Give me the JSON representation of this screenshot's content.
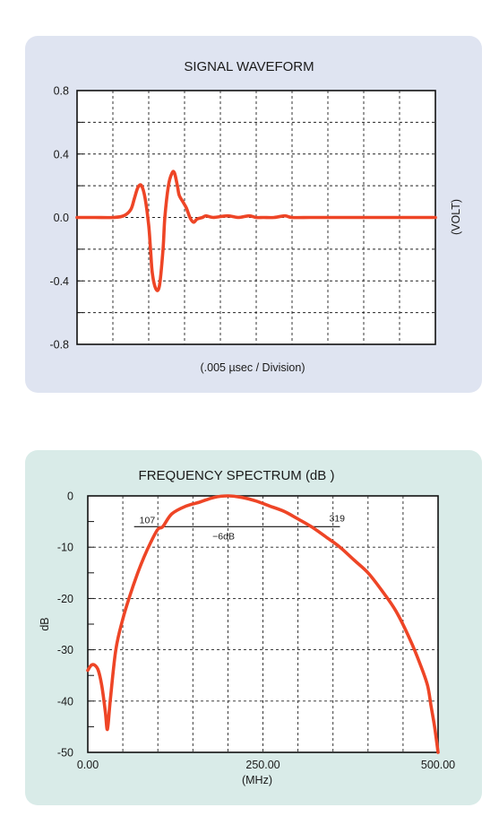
{
  "chart_data": [
    {
      "type": "line",
      "title": "SIGNAL WAVEFORM",
      "xlabel": "(.005 µsec / Division)",
      "ylabel": "(VOLT)",
      "ylim": [
        -0.8,
        0.8
      ],
      "xlim": [
        0,
        10
      ],
      "yticks": [
        -0.8,
        -0.4,
        0.0,
        0.4,
        0.8
      ],
      "ytick_labels": [
        "-0.8",
        "-0.4",
        "0.0",
        "0.4",
        "0.8"
      ],
      "grid": true,
      "color": "#ee4526",
      "series": [
        {
          "x": [
            0,
            0.5,
            1.0,
            1.3,
            1.5,
            1.6,
            1.7,
            1.8,
            1.9,
            2.0,
            2.05,
            2.1,
            2.2,
            2.3,
            2.4,
            2.45,
            2.55,
            2.65,
            2.72,
            2.8,
            2.85,
            2.95,
            3.05,
            3.15,
            3.25,
            3.35,
            3.5,
            3.6,
            3.8,
            4.2,
            4.5,
            4.8,
            5.0,
            5.2,
            5.5,
            5.8,
            6.0,
            6.5,
            7.0,
            8.0,
            9.0,
            10.0
          ],
          "y": [
            0.0,
            0.0,
            0.0,
            0.01,
            0.05,
            0.12,
            0.19,
            0.2,
            0.12,
            -0.05,
            -0.2,
            -0.35,
            -0.45,
            -0.43,
            -0.2,
            0.0,
            0.2,
            0.28,
            0.28,
            0.2,
            0.14,
            0.1,
            0.06,
            0.0,
            -0.03,
            -0.01,
            0.0,
            0.01,
            0.0,
            0.01,
            0.0,
            0.01,
            0.0,
            0.0,
            0.0,
            0.01,
            0.0,
            0.0,
            0.0,
            0.0,
            0.0,
            0.0
          ]
        }
      ]
    },
    {
      "type": "line",
      "title": "FREQUENCY SPECTRUM (dB )",
      "xlabel": "(MHz)",
      "ylabel": "dB",
      "xlim": [
        0,
        500
      ],
      "ylim": [
        -50,
        0
      ],
      "xticks": [
        0,
        250,
        500
      ],
      "xtick_labels": [
        "0.00",
        "250.00",
        "500.00"
      ],
      "yticks": [
        0,
        -10,
        -20,
        -30,
        -40,
        -50
      ],
      "ytick_labels": [
        "0",
        "-10",
        "-20",
        "-30",
        "-40",
        "-50"
      ],
      "grid": true,
      "color": "#ee4526",
      "annotations": {
        "low_label": "107",
        "high_label": "319",
        "level_label": "−6dB",
        "low_mhz": 107,
        "high_mhz": 319,
        "level_db": -6
      },
      "series": [
        {
          "x": [
            0,
            5,
            10,
            15,
            20,
            25,
            28,
            32,
            40,
            50,
            60,
            70,
            80,
            90,
            100,
            107,
            120,
            140,
            160,
            180,
            200,
            220,
            240,
            260,
            280,
            300,
            319,
            340,
            360,
            380,
            400,
            420,
            440,
            460,
            475,
            485,
            490,
            495,
            500
          ],
          "y": [
            -34,
            -33,
            -33,
            -34,
            -37,
            -42,
            -45.5,
            -40,
            -30,
            -24,
            -19.5,
            -15.5,
            -12,
            -9,
            -6.5,
            -6,
            -3.5,
            -2,
            -1.2,
            -0.3,
            0,
            -0.3,
            -1,
            -2,
            -3,
            -4.5,
            -6,
            -8,
            -10,
            -12.5,
            -15,
            -18.5,
            -22.5,
            -28,
            -33,
            -37,
            -41,
            -45,
            -50
          ]
        }
      ]
    }
  ]
}
